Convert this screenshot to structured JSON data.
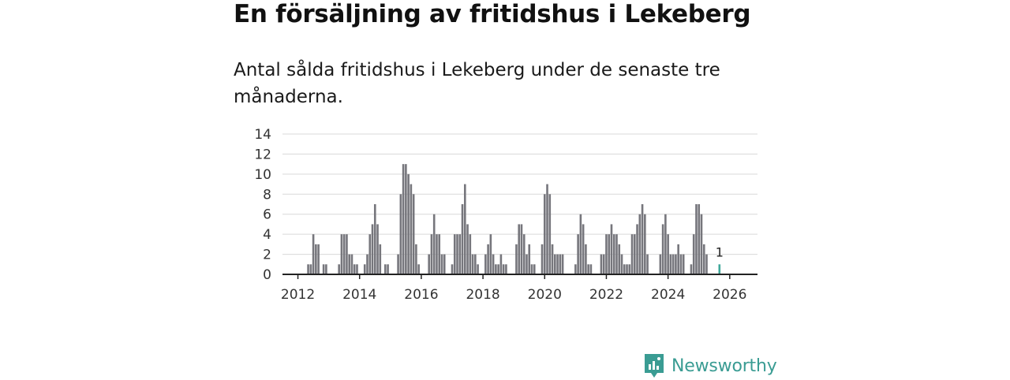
{
  "title": "En försäljning av fritidshus i Lekeberg",
  "subtitle": "Antal sålda fritidshus i Lekeberg under de senaste tre månaderna.",
  "brand": {
    "name": "Newsworthy",
    "icon": "newsworthy-logo-icon",
    "color": "#3a9c93"
  },
  "chart_data": {
    "type": "bar",
    "title": "En försäljning av fritidshus i Lekeberg",
    "xlabel": "",
    "ylabel": "",
    "ylim": [
      0,
      14
    ],
    "yticks": [
      0,
      2,
      4,
      6,
      8,
      10,
      12,
      14
    ],
    "xlim": [
      2011.5,
      2026.9
    ],
    "xticks": [
      "2012",
      "2014",
      "2016",
      "2018",
      "2020",
      "2022",
      "2024",
      "2026"
    ],
    "grid": true,
    "bar_color": "#76767c",
    "highlight_color": "#3fa89a",
    "start": "2012-01",
    "step_months": 1,
    "values": [
      0,
      0,
      0,
      0,
      1,
      1,
      4,
      3,
      3,
      0,
      1,
      1,
      0,
      0,
      0,
      0,
      1,
      4,
      4,
      4,
      2,
      2,
      1,
      1,
      0,
      0,
      1,
      2,
      4,
      5,
      7,
      5,
      3,
      0,
      1,
      1,
      0,
      0,
      0,
      2,
      8,
      11,
      11,
      10,
      9,
      8,
      3,
      1,
      0,
      0,
      0,
      2,
      4,
      6,
      4,
      4,
      2,
      2,
      0,
      0,
      1,
      4,
      4,
      4,
      7,
      9,
      5,
      4,
      2,
      2,
      1,
      0,
      0,
      2,
      3,
      4,
      2,
      1,
      1,
      2,
      1,
      1,
      0,
      0,
      0,
      3,
      5,
      5,
      4,
      2,
      3,
      1,
      1,
      0,
      0,
      3,
      8,
      9,
      8,
      3,
      2,
      2,
      2,
      2,
      0,
      0,
      0,
      0,
      1,
      4,
      6,
      5,
      3,
      1,
      1,
      0,
      0,
      0,
      2,
      2,
      4,
      4,
      5,
      4,
      4,
      3,
      2,
      1,
      1,
      1,
      4,
      4,
      5,
      6,
      7,
      6,
      2,
      0,
      0,
      0,
      0,
      2,
      5,
      6,
      4,
      2,
      2,
      2,
      3,
      2,
      2,
      0,
      0,
      1,
      4,
      7,
      7,
      6,
      3,
      2,
      0,
      0,
      0,
      0,
      1
    ],
    "highlight_last": true,
    "annotation": {
      "label": "1",
      "value": 1
    }
  }
}
